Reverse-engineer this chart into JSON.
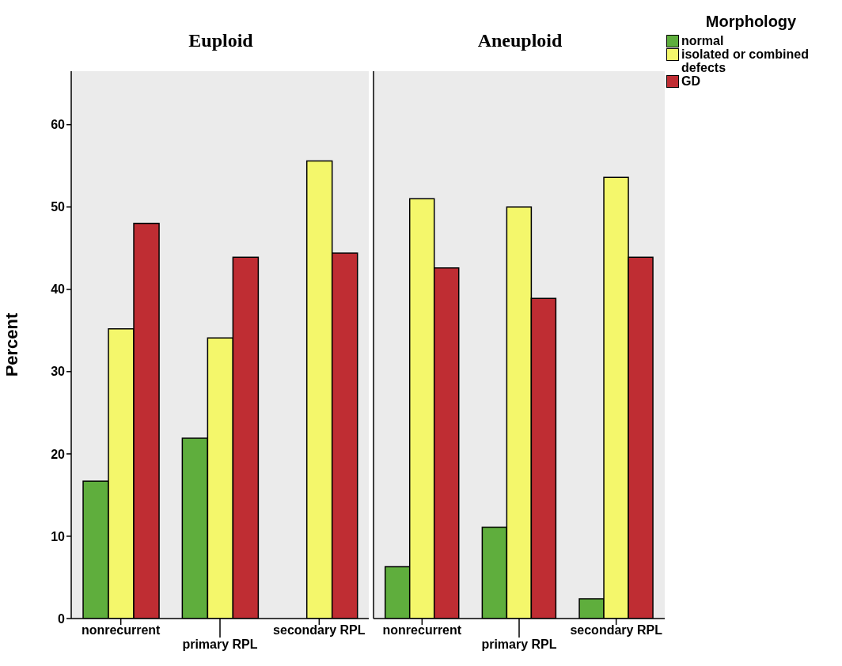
{
  "chart_data": [
    {
      "type": "bar",
      "title": "Euploid",
      "ylabel": "Percent",
      "categories": [
        "nonrecurrent",
        "primary RPL",
        "secondary RPL"
      ],
      "ylim": [
        0,
        66.5
      ],
      "yticks": [
        0,
        10,
        20,
        30,
        40,
        50,
        60
      ],
      "grid": false,
      "legend": false,
      "series": [
        {
          "color": "#5fae3d",
          "values": [
            16.7,
            21.9,
            0
          ]
        },
        {
          "color": "#f4f76b",
          "values": [
            35.2,
            34.1,
            55.6
          ]
        },
        {
          "color": "#bf2d33",
          "values": [
            48.0,
            43.9,
            44.4
          ]
        }
      ]
    },
    {
      "type": "bar",
      "title": "Aneuploid",
      "categories": [
        "nonrecurrent",
        "primary RPL",
        "secondary RPL"
      ],
      "ylim": [
        0,
        66.5
      ],
      "yticks": [
        0,
        10,
        20,
        30,
        40,
        50,
        60
      ],
      "grid": false,
      "tick_labels": "x",
      "legend": "top right",
      "legend_title": "Morphology",
      "series": [
        {
          "name": "normal",
          "color": "#5fae3d",
          "values": [
            6.3,
            11.1,
            2.4
          ]
        },
        {
          "name": "isolated or combined defects",
          "color": "#f4f76b",
          "values": [
            51.0,
            50.0,
            53.6
          ]
        },
        {
          "name": "GD",
          "color": "#bf2d33",
          "values": [
            42.6,
            38.9,
            43.9
          ]
        }
      ]
    }
  ]
}
